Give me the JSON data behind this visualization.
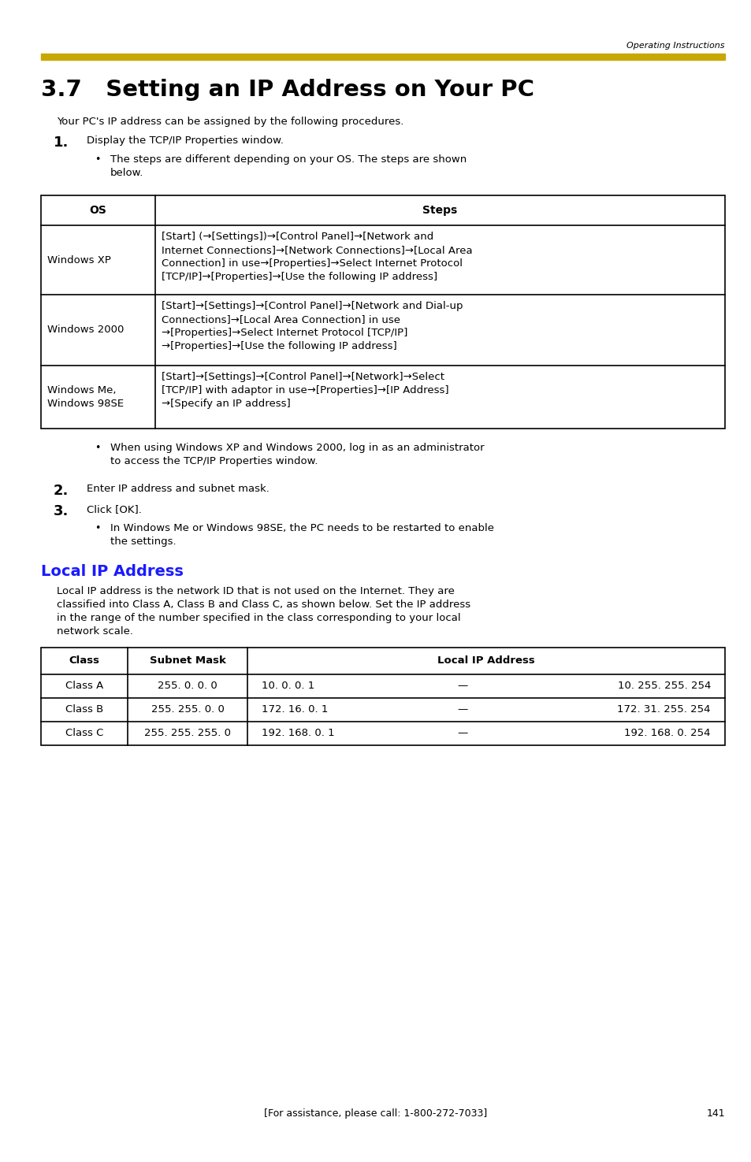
{
  "page_bg": "#ffffff",
  "top_bar_color": "#c8a800",
  "header_text": "Operating Instructions",
  "title": "3.7   Setting an IP Address on Your PC",
  "blue_heading": "Local IP Address",
  "blue_color": "#1a1aff",
  "intro_text": "Your PC's IP address can be assigned by the following procedures.",
  "step1_bullet": "The steps are different depending on your OS. The steps are shown\nbelow.",
  "table1_headers": [
    "OS",
    "Steps"
  ],
  "table1_rows": [
    [
      "Windows XP",
      "[Start] (→[Settings])→[Control Panel]→[Network and\nInternet Connections]→[Network Connections]→[Local Area\nConnection] in use→[Properties]→Select Internet Protocol\n[TCP/IP]→[Properties]→[Use the following IP address]"
    ],
    [
      "Windows 2000",
      "[Start]→[Settings]→[Control Panel]→[Network and Dial-up\nConnections]→[Local Area Connection] in use\n→[Properties]→Select Internet Protocol [TCP/IP]\n→[Properties]→[Use the following IP address]"
    ],
    [
      "Windows Me,\nWindows 98SE",
      "[Start]→[Settings]→[Control Panel]→[Network]→Select\n[TCP/IP] with adaptor in use→[Properties]→[IP Address]\n→[Specify an IP address]"
    ]
  ],
  "bullet_after_table1": "When using Windows XP and Windows 2000, log in as an administrator\nto access the TCP/IP Properties window.",
  "step2_text": "Enter IP address and subnet mask.",
  "step3_text": "Click [OK].",
  "step3_bullet": "In Windows Me or Windows 98SE, the PC needs to be restarted to enable\nthe settings.",
  "local_ip_body": "Local IP address is the network ID that is not used on the Internet. They are\nclassified into Class A, Class B and Class C, as shown below. Set the IP address\nin the range of the number specified in the class corresponding to your local\nnetwork scale.",
  "table2_headers": [
    "Class",
    "Subnet Mask",
    "Local IP Address"
  ],
  "table2_rows": [
    [
      "Class A",
      "255. 0. 0. 0",
      "10. 0. 0. 1",
      "—",
      "10. 255. 255. 254"
    ],
    [
      "Class B",
      "255. 255. 0. 0",
      "172. 16. 0. 1",
      "—",
      "172. 31. 255. 254"
    ],
    [
      "Class C",
      "255. 255. 255. 0",
      "192. 168. 0. 1",
      "—",
      "192. 168. 0. 254"
    ]
  ],
  "footer_text": "[For assistance, please call: 1-800-272-7033]",
  "page_number": "141"
}
